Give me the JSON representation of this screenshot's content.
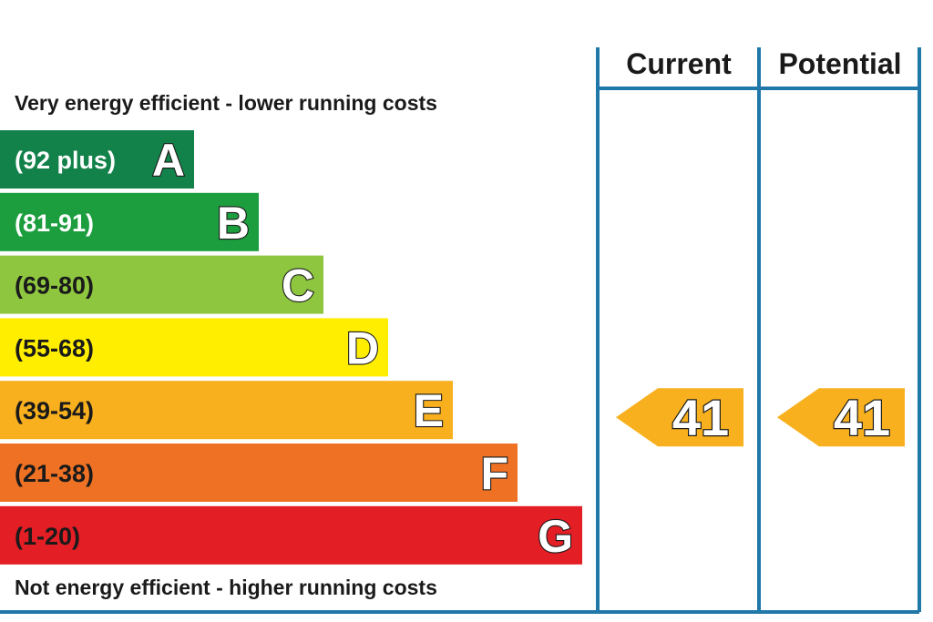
{
  "chart_data": {
    "type": "bar",
    "top_caption": "Very energy efficient - lower running costs",
    "bottom_caption": "Not energy efficient - higher running costs",
    "columns": [
      "Current",
      "Potential"
    ],
    "bands": [
      {
        "letter": "A",
        "range": "(92 plus)",
        "color": "#13824a",
        "text_color": "#ffffff"
      },
      {
        "letter": "B",
        "range": "(81-91)",
        "color": "#1c9d3e",
        "text_color": "#ffffff"
      },
      {
        "letter": "C",
        "range": "(69-80)",
        "color": "#8ec63f",
        "text_color": "#1a1a1a"
      },
      {
        "letter": "D",
        "range": "(55-68)",
        "color": "#ffee00",
        "text_color": "#1a1a1a"
      },
      {
        "letter": "E",
        "range": "(39-54)",
        "color": "#f8b01e",
        "text_color": "#1a1a1a"
      },
      {
        "letter": "F",
        "range": "(21-38)",
        "color": "#ef7224",
        "text_color": "#1a1a1a"
      },
      {
        "letter": "G",
        "range": "(1-20)",
        "color": "#e31e25",
        "text_color": "#1a1a1a"
      }
    ],
    "ratings": [
      {
        "column": "Current",
        "value": 41,
        "band": "E",
        "color": "#f8b01e"
      },
      {
        "column": "Potential",
        "value": 41,
        "band": "E",
        "color": "#f8b01e"
      }
    ],
    "frame_color": "#1f78a8"
  }
}
